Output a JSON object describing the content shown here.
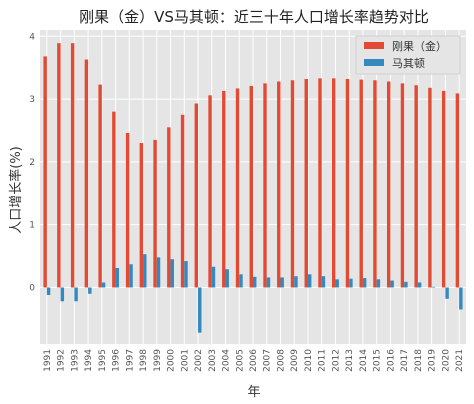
{
  "chart_data": {
    "type": "bar",
    "title": "刚果（金）VS马其顿：近三十年人口增长率趋势对比",
    "xlabel": "年",
    "ylabel": "人口增长率(%)",
    "ylim": [
      -0.9,
      4.1
    ],
    "yticks": [
      0,
      1,
      2,
      3,
      4
    ],
    "grid": true,
    "legend_position": "top-right",
    "categories": [
      "1991",
      "1992",
      "1993",
      "1994",
      "1995",
      "1996",
      "1997",
      "1998",
      "1999",
      "2000",
      "2001",
      "2002",
      "2003",
      "2004",
      "2005",
      "2006",
      "2007",
      "2008",
      "2009",
      "2010",
      "2011",
      "2012",
      "2013",
      "2014",
      "2015",
      "2016",
      "2017",
      "2018",
      "2019",
      "2020",
      "2021"
    ],
    "series": [
      {
        "name": "刚果（金）",
        "color": "#e24a33",
        "values": [
          3.68,
          3.89,
          3.89,
          3.63,
          3.23,
          2.8,
          2.46,
          2.3,
          2.35,
          2.55,
          2.75,
          2.93,
          3.06,
          3.13,
          3.17,
          3.21,
          3.25,
          3.28,
          3.3,
          3.32,
          3.33,
          3.33,
          3.32,
          3.31,
          3.3,
          3.28,
          3.25,
          3.22,
          3.18,
          3.13,
          3.09
        ]
      },
      {
        "name": "马其顿",
        "color": "#348abd",
        "values": [
          -0.12,
          -0.22,
          -0.22,
          -0.1,
          0.08,
          0.31,
          0.37,
          0.53,
          0.48,
          0.45,
          0.42,
          -0.72,
          0.33,
          0.29,
          0.21,
          0.17,
          0.16,
          0.16,
          0.18,
          0.21,
          0.18,
          0.13,
          0.14,
          0.15,
          0.13,
          0.11,
          0.09,
          0.08,
          0.01,
          -0.18,
          -0.35
        ]
      }
    ]
  }
}
